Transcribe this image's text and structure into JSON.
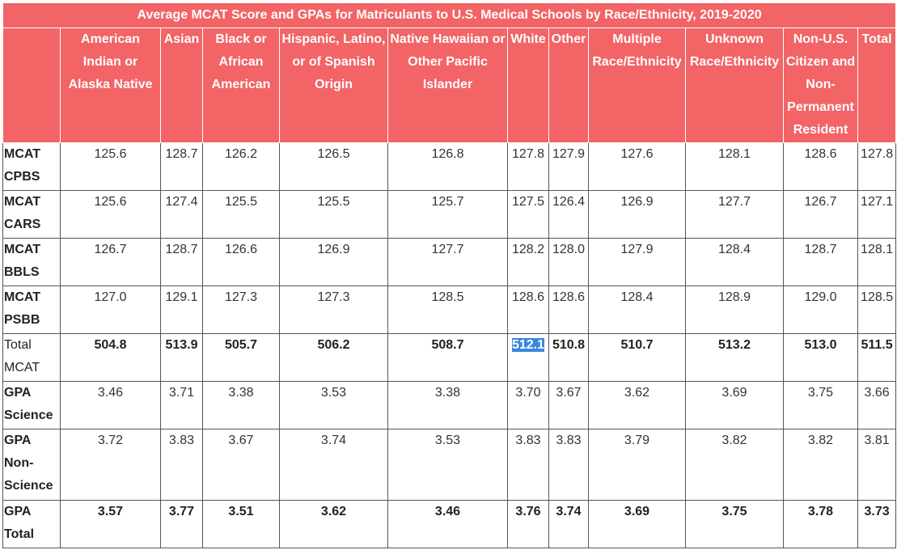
{
  "table": {
    "title": "Average MCAT Score and GPAs for Matriculants to U.S. Medical Schools by Race/Ethnicity, 2019-2020",
    "columns": [
      "American Indian or Alaska Native",
      "Asian",
      "Black or African American",
      "Hispanic, Latino, or of Spanish Origin",
      "Native Hawaiian or Other Pacific Islander",
      "White",
      "Other",
      "Multiple Race/Ethnicity",
      "Unknown Race/Ethnicity",
      "Non-U.S. Citizen and Non-Permanent Resident",
      "Total"
    ],
    "rows": [
      [
        "MCAT CPBS",
        "125.6",
        "128.7",
        "126.2",
        "126.5",
        "126.8",
        "127.8",
        "127.9",
        "127.6",
        "128.1",
        "128.6",
        "127.8"
      ],
      [
        "MCAT CARS",
        "125.6",
        "127.4",
        "125.5",
        "125.5",
        "125.7",
        "127.5",
        "126.4",
        "126.9",
        "127.7",
        "126.7",
        "127.1"
      ],
      [
        "MCAT BBLS",
        "126.7",
        "128.7",
        "126.6",
        "126.9",
        "127.7",
        "128.2",
        "128.0",
        "127.9",
        "128.4",
        "128.7",
        "128.1"
      ],
      [
        "MCAT PSBB",
        "127.0",
        "129.1",
        "127.3",
        "127.3",
        "128.5",
        "128.6",
        "128.6",
        "128.4",
        "128.9",
        "129.0",
        "128.5"
      ],
      [
        "Total MCAT",
        "504.8",
        "513.9",
        "505.7",
        "506.2",
        "508.7",
        "512.1",
        "510.8",
        "510.7",
        "513.2",
        "513.0",
        "511.5"
      ],
      [
        "GPA Science",
        "3.46",
        "3.71",
        "3.38",
        "3.53",
        "3.38",
        "3.70",
        "3.67",
        "3.62",
        "3.69",
        "3.75",
        "3.66"
      ],
      [
        "GPA Non-Science",
        "3.72",
        "3.83",
        "3.67",
        "3.74",
        "3.53",
        "3.83",
        "3.83",
        "3.79",
        "3.82",
        "3.82",
        "3.81"
      ],
      [
        "GPA Total",
        "3.57",
        "3.77",
        "3.51",
        "3.62",
        "3.46",
        "3.76",
        "3.74",
        "3.69",
        "3.75",
        "3.78",
        "3.73"
      ]
    ]
  }
}
